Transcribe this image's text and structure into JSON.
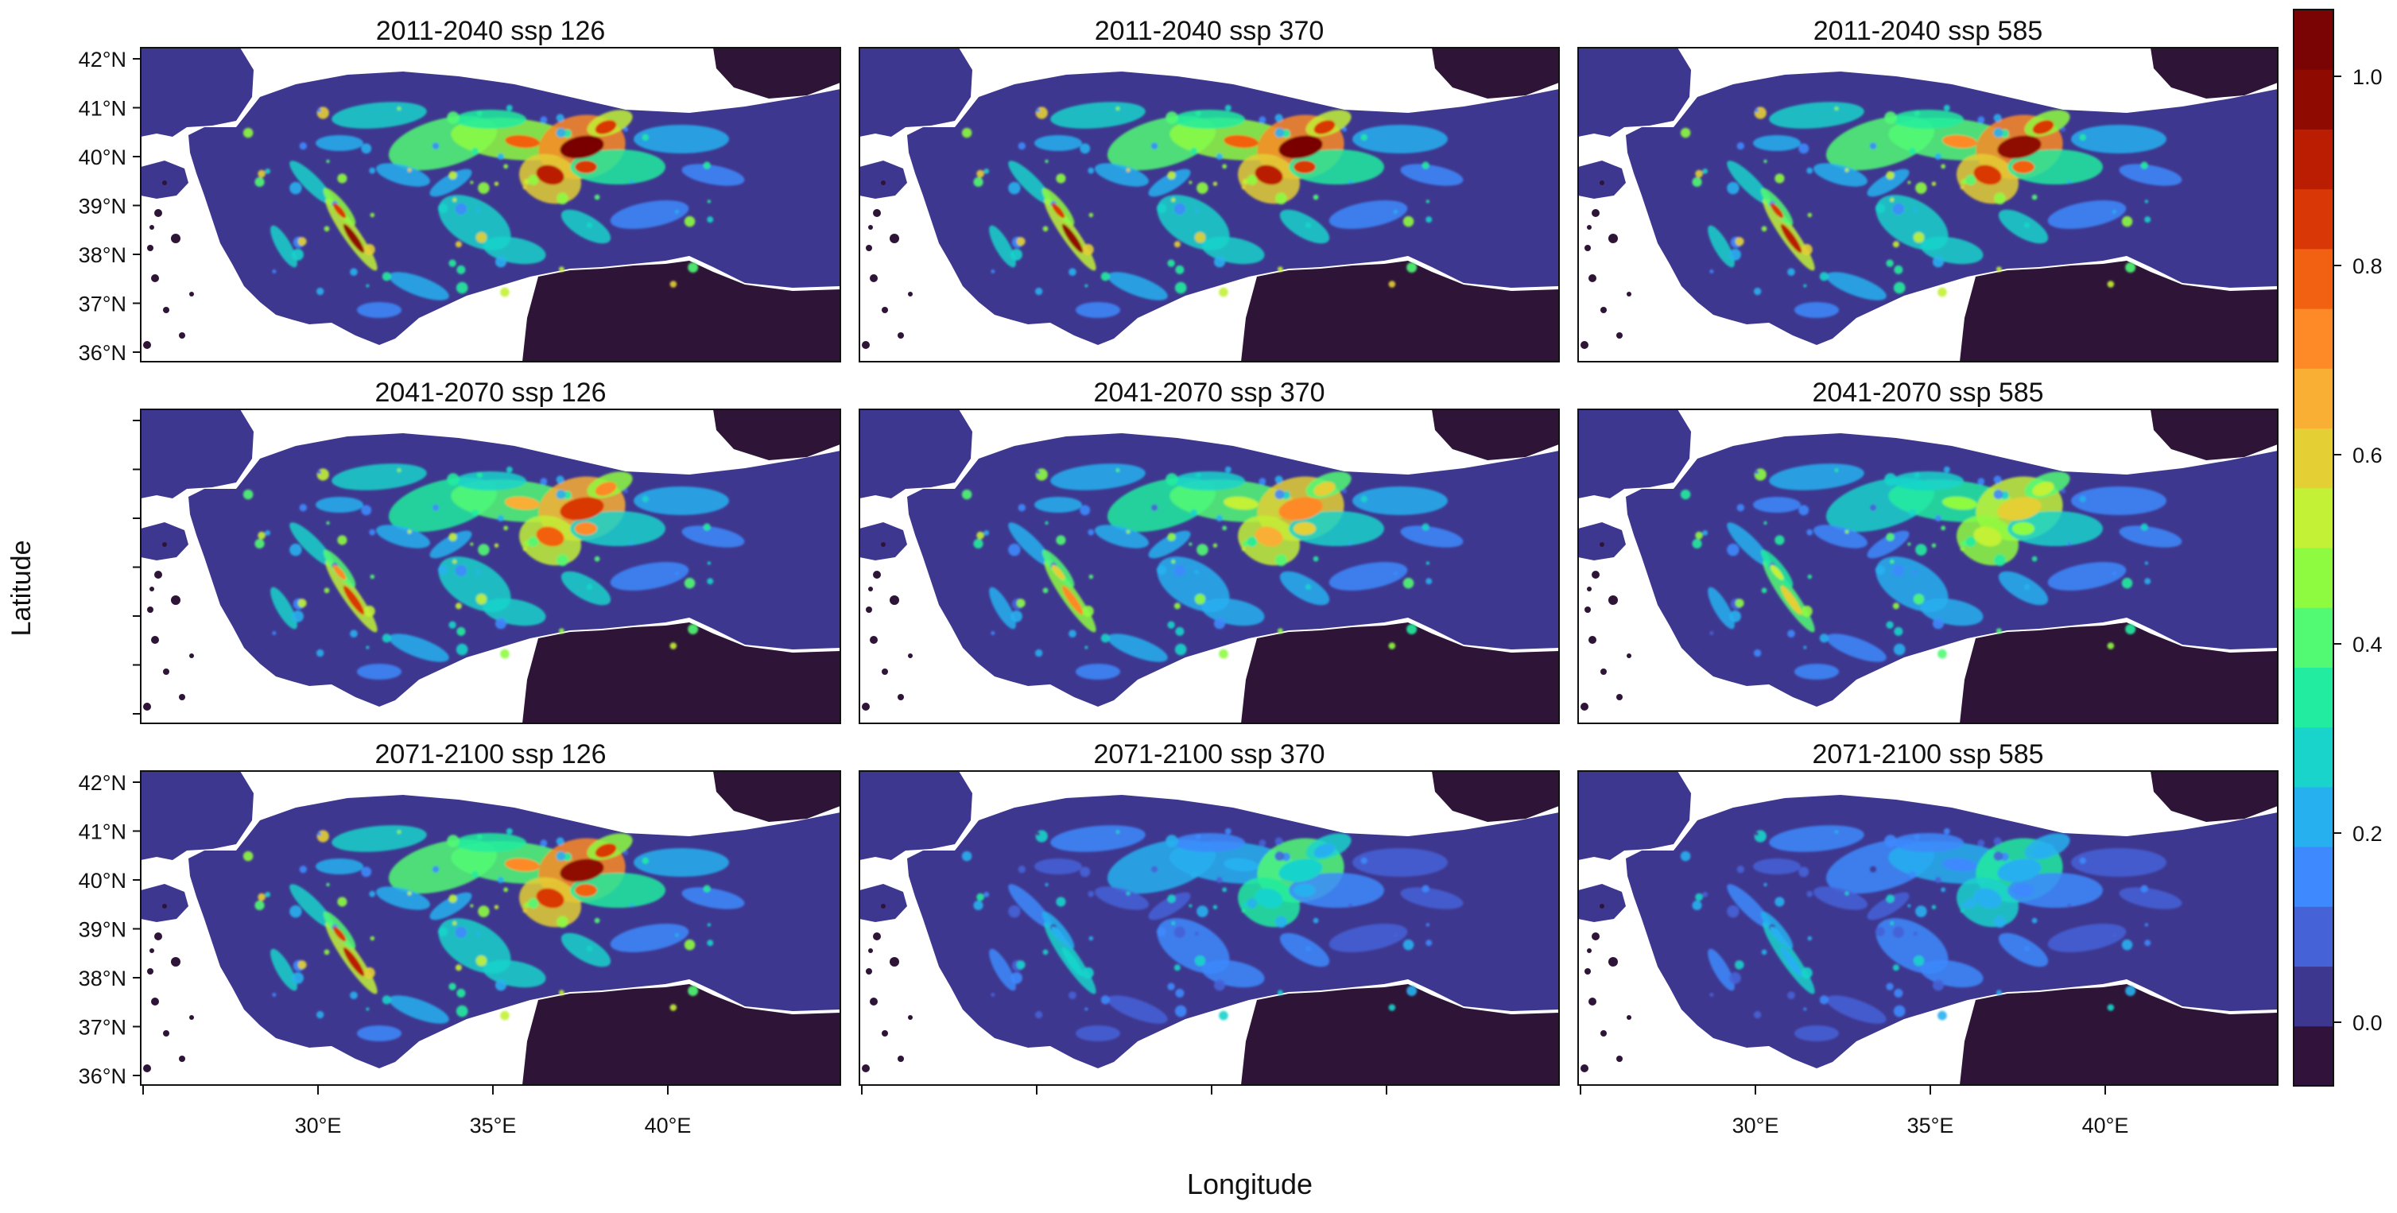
{
  "figure": {
    "xlabel": "Longitude",
    "ylabel": "Latitude"
  },
  "panels": [
    {
      "title": "2011-2040 ssp 126",
      "intensity": 1.0
    },
    {
      "title": "2011-2040 ssp 370",
      "intensity": 1.0
    },
    {
      "title": "2011-2040 ssp 585",
      "intensity": 0.97
    },
    {
      "title": "2041-2070 ssp 126",
      "intensity": 0.92
    },
    {
      "title": "2041-2070 ssp 370",
      "intensity": 0.85
    },
    {
      "title": "2041-2070 ssp 585",
      "intensity": 0.78
    },
    {
      "title": "2071-2100 ssp 126",
      "intensity": 0.97
    },
    {
      "title": "2071-2100 ssp 370",
      "intensity": 0.55
    },
    {
      "title": "2071-2100 ssp 585",
      "intensity": 0.5
    }
  ],
  "axes": {
    "lat_ticks": [
      "42°N",
      "41°N",
      "40°N",
      "39°N",
      "38°N",
      "37°N",
      "36°N"
    ],
    "lon_ticks": [
      "30°E",
      "35°E",
      "40°E"
    ]
  },
  "legend": {
    "labels": [
      "0.0",
      "0.2",
      "0.4",
      "0.6",
      "0.8",
      "1.0"
    ],
    "colors": [
      "#30123b",
      "#3e378f",
      "#4662d7",
      "#3d89fd",
      "#27b0f0",
      "#19d4cb",
      "#22ec9f",
      "#52fa74",
      "#8efb41",
      "#c2f135",
      "#e4cf34",
      "#f9ae34",
      "#fd8a26",
      "#f26011",
      "#d93806",
      "#ba1d02",
      "#8f0a01",
      "#7a0403"
    ]
  },
  "colors": {
    "land_low": "#3e378f",
    "sea_dark": "#2e1437",
    "water": "#ffffff"
  }
}
